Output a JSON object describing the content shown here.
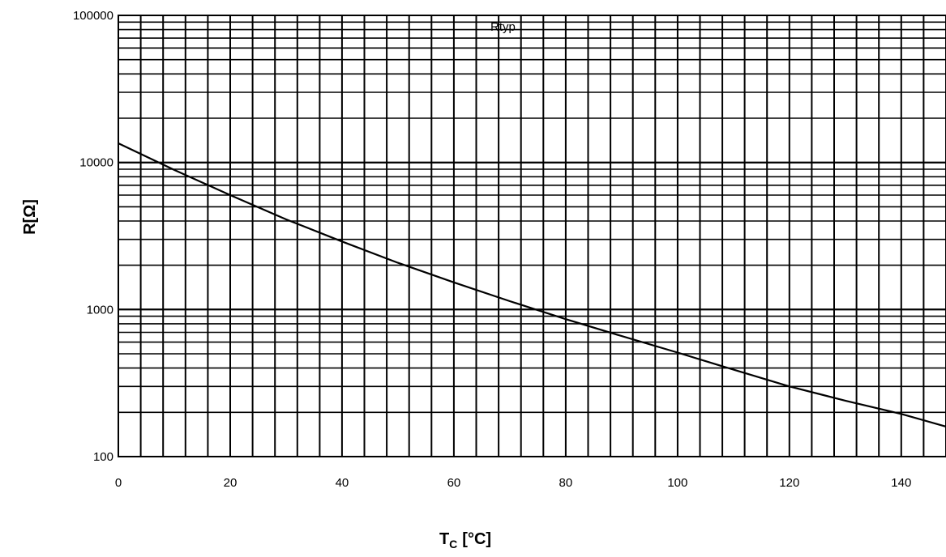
{
  "chart_data": {
    "type": "line",
    "title": "",
    "xlabel_main": "T",
    "xlabel_sub": "C",
    "xlabel_unit": "[°C]",
    "ylabel": "R[Ω]",
    "x_scale": "linear",
    "y_scale": "log",
    "xlim": [
      0,
      148
    ],
    "ylim": [
      100,
      100000
    ],
    "x_ticks": [
      0,
      20,
      40,
      60,
      80,
      100,
      120,
      140
    ],
    "x_tick_labels": [
      "0",
      "20",
      "40",
      "60",
      "80",
      "100",
      "120",
      "140"
    ],
    "x_minor_step": 4,
    "y_ticks": [
      100,
      1000,
      10000,
      100000
    ],
    "y_tick_labels": [
      "100",
      "1000",
      "10000",
      "100000"
    ],
    "grid": true,
    "legend_position": "top-center",
    "series": [
      {
        "name": "Rtyp",
        "color": "#000000",
        "x": [
          0,
          10,
          20,
          30,
          40,
          50,
          60,
          70,
          80,
          90,
          100,
          110,
          120,
          130,
          140,
          148
        ],
        "y": [
          13500,
          8900,
          6000,
          4100,
          2900,
          2080,
          1530,
          1140,
          860,
          660,
          510,
          390,
          300,
          240,
          195,
          160
        ]
      }
    ]
  }
}
